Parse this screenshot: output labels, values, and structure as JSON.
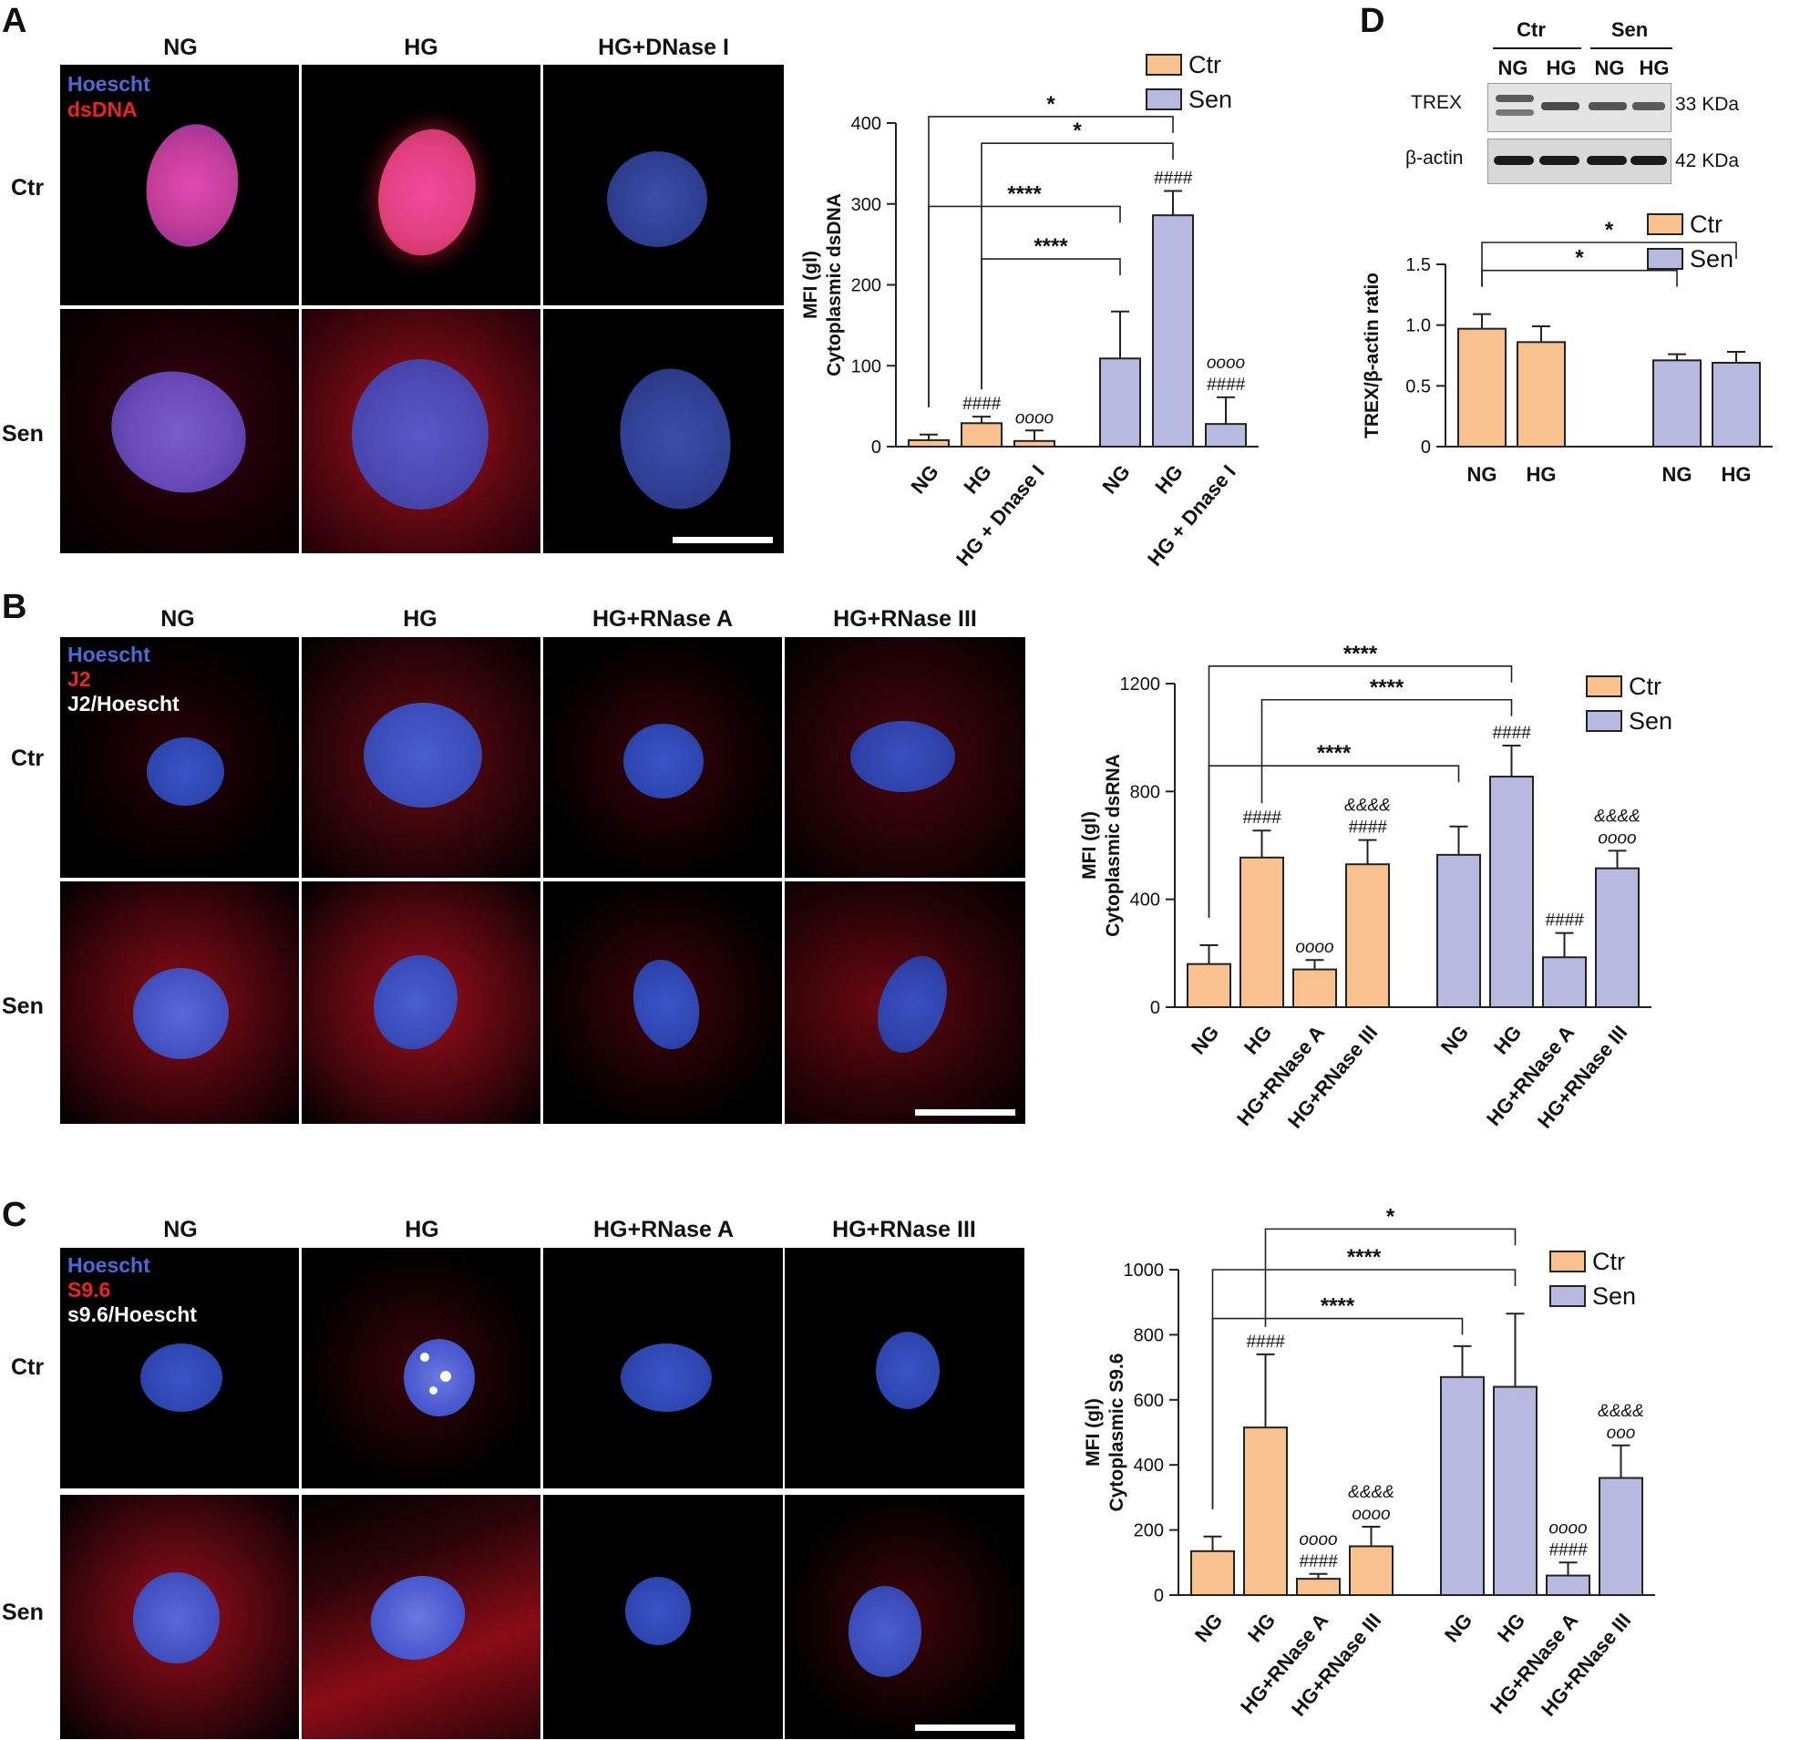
{
  "panelA": {
    "letter": "A",
    "columns": [
      "NG",
      "HG",
      "HG+DNase I"
    ],
    "rows": [
      "Ctr",
      "Sen"
    ],
    "stains": [
      {
        "text": "Hoescht",
        "color": "#4a6ad8"
      },
      {
        "text": "dsDNA",
        "color": "#ee2222"
      }
    ]
  },
  "panelB": {
    "letter": "B",
    "columns": [
      "NG",
      "HG",
      "HG+RNase A",
      "HG+RNase III"
    ],
    "rows": [
      "Ctr",
      "Sen"
    ],
    "stains": [
      {
        "text": "Hoescht",
        "color": "#4a6ad8"
      },
      {
        "text": "J2",
        "color": "#ee2222"
      },
      {
        "text": "J2/Hoescht",
        "color": "#ffffff"
      }
    ]
  },
  "panelC": {
    "letter": "C",
    "columns": [
      "NG",
      "HG",
      "HG+RNase A",
      "HG+RNase III"
    ],
    "rows": [
      "Ctr",
      "Sen"
    ],
    "stains": [
      {
        "text": "Hoescht",
        "color": "#4a6ad8"
      },
      {
        "text": "S9.6",
        "color": "#ee2222"
      },
      {
        "text": "s9.6/Hoescht",
        "color": "#ffffff"
      }
    ]
  },
  "panelD": {
    "letter": "D",
    "blot_groups": [
      "Ctr",
      "Sen"
    ],
    "blot_lanes": [
      "NG",
      "HG",
      "NG",
      "HG"
    ],
    "blot_bands": [
      {
        "protein": "TREX",
        "size": "33 KDa"
      },
      {
        "protein": "β-actin",
        "size": "42 KDa"
      }
    ]
  },
  "colors": {
    "ctr": "#f9c18e",
    "sen": "#b8b9e0",
    "stroke": "#222222"
  },
  "chart_data": [
    {
      "id": "chartA",
      "type": "bar",
      "ylabel": [
        "MFI (gl)",
        "Cytoplasmic dsDNA"
      ],
      "ylim": [
        0,
        400
      ],
      "yticks": [
        0,
        100,
        200,
        300,
        400
      ],
      "categories": [
        "NG",
        "HG",
        "HG + Dnase I",
        "NG",
        "HG",
        "HG + Dnase I"
      ],
      "groups": [
        "ctr",
        "ctr",
        "ctr",
        "sen",
        "sen",
        "sen"
      ],
      "values": [
        8,
        29,
        7,
        109,
        286,
        28
      ],
      "errors": [
        7,
        8,
        13,
        58,
        30,
        33
      ],
      "annotations": [
        [],
        [
          "####"
        ],
        [
          "oooo"
        ],
        [],
        [
          "####"
        ],
        [
          "oooo",
          "####"
        ]
      ],
      "legend": [
        {
          "key": "ctr",
          "text": "Ctr"
        },
        {
          "key": "sen",
          "text": "Sen"
        }
      ],
      "significance": [
        {
          "from": 0,
          "to": 4,
          "label": "*",
          "y": 408
        },
        {
          "from": 1,
          "to": 4,
          "label": "*",
          "y": 375
        },
        {
          "from": 0,
          "to": 3,
          "label": "****",
          "y": 297
        },
        {
          "from": 1,
          "to": 3,
          "label": "****",
          "y": 232
        }
      ]
    },
    {
      "id": "chartB",
      "type": "bar",
      "ylabel": [
        "MFI (gl)",
        "Cytoplasmic dsRNA"
      ],
      "ylim": [
        0,
        1200
      ],
      "yticks": [
        0,
        400,
        800,
        1200
      ],
      "categories": [
        "NG",
        "HG",
        "HG+RNase A",
        "HG+RNase III",
        "NG",
        "HG",
        "HG+RNase A",
        "HG+RNase III"
      ],
      "groups": [
        "ctr",
        "ctr",
        "ctr",
        "ctr",
        "sen",
        "sen",
        "sen",
        "sen"
      ],
      "values": [
        160,
        555,
        140,
        530,
        565,
        855,
        185,
        515
      ],
      "errors": [
        70,
        100,
        35,
        90,
        105,
        115,
        90,
        65
      ],
      "annotations": [
        [],
        [
          "####"
        ],
        [
          "oooo"
        ],
        [
          "&&&&",
          "####"
        ],
        [],
        [
          "####"
        ],
        [
          "####"
        ],
        [
          "&&&&",
          "oooo"
        ]
      ],
      "legend": [
        {
          "key": "ctr",
          "text": "Ctr"
        },
        {
          "key": "sen",
          "text": "Sen"
        }
      ],
      "significance": [
        {
          "from": 0,
          "to": 5,
          "label": "****",
          "y": 1265
        },
        {
          "from": 1,
          "to": 5,
          "label": "****",
          "y": 1140
        },
        {
          "from": 0,
          "to": 4,
          "label": "****",
          "y": 895
        }
      ]
    },
    {
      "id": "chartC",
      "type": "bar",
      "ylabel": [
        "MFI (gl)",
        "Cytoplasmic S9.6"
      ],
      "ylim": [
        0,
        1000
      ],
      "yticks": [
        0,
        200,
        400,
        600,
        800,
        1000
      ],
      "categories": [
        "NG",
        "HG",
        "HG+RNase A",
        "HG+RNase III",
        "NG",
        "HG",
        "HG+RNase A",
        "HG+RNase III"
      ],
      "groups": [
        "ctr",
        "ctr",
        "ctr",
        "ctr",
        "sen",
        "sen",
        "sen",
        "sen"
      ],
      "values": [
        135,
        515,
        50,
        150,
        670,
        640,
        60,
        360
      ],
      "errors": [
        45,
        225,
        15,
        60,
        95,
        225,
        40,
        100
      ],
      "annotations": [
        [],
        [
          "####"
        ],
        [
          "oooo",
          "####"
        ],
        [
          "&&&&",
          "oooo"
        ],
        [],
        [],
        [
          "oooo",
          "####"
        ],
        [
          "&&&&",
          "ooo"
        ]
      ],
      "legend": [
        {
          "key": "ctr",
          "text": "Ctr"
        },
        {
          "key": "sen",
          "text": "Sen"
        }
      ],
      "significance": [
        {
          "from": 1,
          "to": 5,
          "label": "*",
          "y": 1125
        },
        {
          "from": 0,
          "to": 5,
          "label": "****",
          "y": 1000
        },
        {
          "from": 0,
          "to": 4,
          "label": "****",
          "y": 850
        }
      ]
    },
    {
      "id": "chartD",
      "type": "bar",
      "ylabel": [
        "TREX/β-actin ratio"
      ],
      "ylim": [
        0,
        1.5
      ],
      "yticks": [
        0,
        0.5,
        1.0,
        1.5
      ],
      "ytick_labels": [
        "0",
        "0.5",
        "1.0",
        "1.5"
      ],
      "categories": [
        "NG",
        "HG",
        "NG",
        "HG"
      ],
      "groups": [
        "ctr",
        "ctr",
        "sen",
        "sen"
      ],
      "values": [
        0.97,
        0.86,
        0.71,
        0.69
      ],
      "errors": [
        0.12,
        0.13,
        0.05,
        0.09
      ],
      "annotations": [
        [],
        [],
        [],
        []
      ],
      "legend": [
        {
          "key": "ctr",
          "text": "Ctr"
        },
        {
          "key": "sen",
          "text": "Sen"
        }
      ],
      "significance": [
        {
          "from": 0,
          "to": 3,
          "label": "*",
          "y": 1.68
        },
        {
          "from": 0,
          "to": 2,
          "label": "*",
          "y": 1.45
        }
      ]
    }
  ]
}
